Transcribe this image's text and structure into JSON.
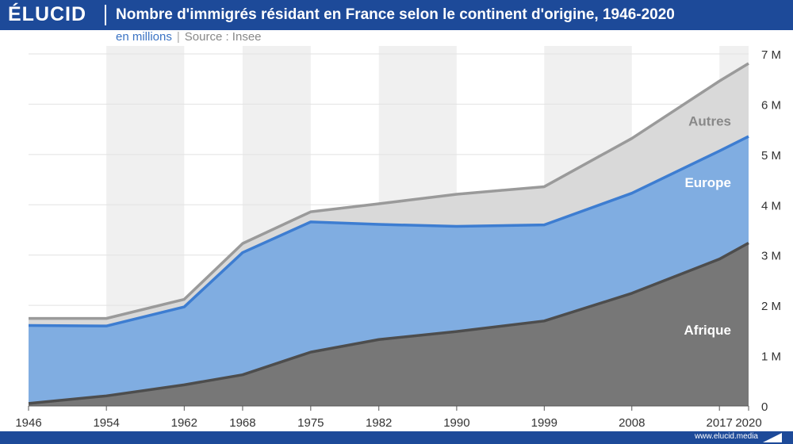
{
  "brand": {
    "logo_text": "ÉLUCID",
    "footer_url": "www.elucid.media"
  },
  "colors": {
    "header_bg": "#1d4a99",
    "afrique": "#777777",
    "afrique_line": "#4d4d4d",
    "europe": "#80ade1",
    "europe_line": "#3d7dd1",
    "autres": "#d9d9d9",
    "autres_line": "#9a9a9a",
    "band": "#f0f0f0"
  },
  "chart_data": {
    "type": "area",
    "stacked": true,
    "title": "Nombre d'immigrés résidant en France selon le continent d'origine, 1946-2020",
    "unit_label": "en millions",
    "source_label": "Source : Insee",
    "x": [
      "1946",
      "1954",
      "1962",
      "1968",
      "1975",
      "1982",
      "1990",
      "1999",
      "2008",
      "2017",
      "2020"
    ],
    "ylim": [
      0,
      7
    ],
    "yticks": [
      "0",
      "1 M",
      "2 M",
      "3 M",
      "4 M",
      "5 M",
      "6 M",
      "7 M"
    ],
    "series": [
      {
        "name": "Afrique",
        "values": [
          0.05,
          0.2,
          0.42,
          0.62,
          1.07,
          1.32,
          1.48,
          1.69,
          2.24,
          2.92,
          3.24
        ]
      },
      {
        "name": "Europe",
        "values": [
          1.55,
          1.39,
          1.55,
          2.43,
          2.59,
          2.29,
          2.09,
          1.91,
          1.99,
          2.15,
          2.12
        ]
      },
      {
        "name": "Autres",
        "values": [
          0.14,
          0.15,
          0.15,
          0.18,
          0.2,
          0.41,
          0.64,
          0.76,
          1.09,
          1.39,
          1.45
        ]
      }
    ],
    "grid": true,
    "legend": "inline-right"
  }
}
